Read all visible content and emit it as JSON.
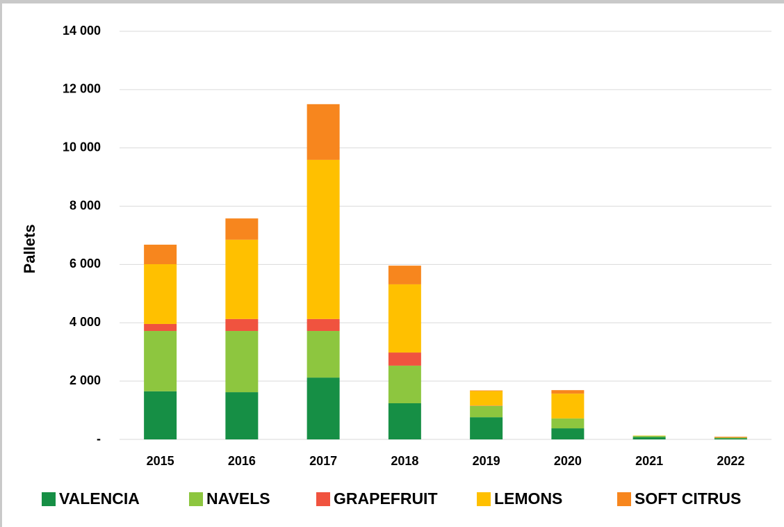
{
  "chart_data": {
    "type": "stacked_bar",
    "y_label": "Pallets",
    "categories": [
      "2015",
      "2016",
      "2017",
      "2018",
      "2019",
      "2020",
      "2021",
      "2022"
    ],
    "series": [
      {
        "name": "VALENCIA",
        "color": "#168f45",
        "values": [
          1650,
          1620,
          2120,
          1240,
          760,
          380,
          80,
          40
        ]
      },
      {
        "name": "NAVELS",
        "color": "#8dc63f",
        "values": [
          2070,
          2100,
          1600,
          1290,
          390,
          340,
          40,
          20
        ]
      },
      {
        "name": "GRAPEFRUIT",
        "color": "#f0533f",
        "values": [
          240,
          410,
          410,
          450,
          10,
          0,
          0,
          0
        ]
      },
      {
        "name": "LEMONS",
        "color": "#ffc000",
        "values": [
          2050,
          2720,
          5460,
          2340,
          500,
          850,
          10,
          0
        ]
      },
      {
        "name": "SOFT CITRUS",
        "color": "#f7861e",
        "values": [
          670,
          730,
          1910,
          640,
          20,
          120,
          0,
          30
        ]
      }
    ],
    "ylim": [
      0,
      14000
    ],
    "yticks": [
      {
        "value": 0,
        "label": "-"
      },
      {
        "value": 2000,
        "label": "2 000"
      },
      {
        "value": 4000,
        "label": "4 000"
      },
      {
        "value": 6000,
        "label": "6 000"
      },
      {
        "value": 8000,
        "label": "8 000"
      },
      {
        "value": 10000,
        "label": "10 000"
      },
      {
        "value": 12000,
        "label": "12 000"
      },
      {
        "value": 14000,
        "label": "14 000"
      }
    ],
    "grid": true,
    "legend": "bottom"
  }
}
